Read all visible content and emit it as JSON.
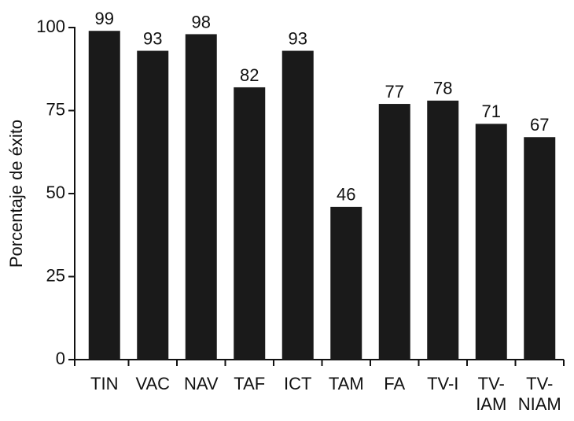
{
  "chart_data": {
    "type": "bar",
    "ylabel": "Porcentaje de éxito",
    "categories": [
      "TIN",
      "VAC",
      "NAV",
      "TAF",
      "ICT",
      "TAM",
      "FA",
      "TV-I",
      "TV-\nIAM",
      "TV-\nNIAM"
    ],
    "values": [
      99,
      93,
      98,
      82,
      93,
      46,
      77,
      78,
      71,
      67
    ],
    "color": "#1a1a1a",
    "ylim": [
      0,
      100
    ],
    "yticks": [
      0,
      25,
      50,
      75,
      100
    ],
    "grid": false
  }
}
